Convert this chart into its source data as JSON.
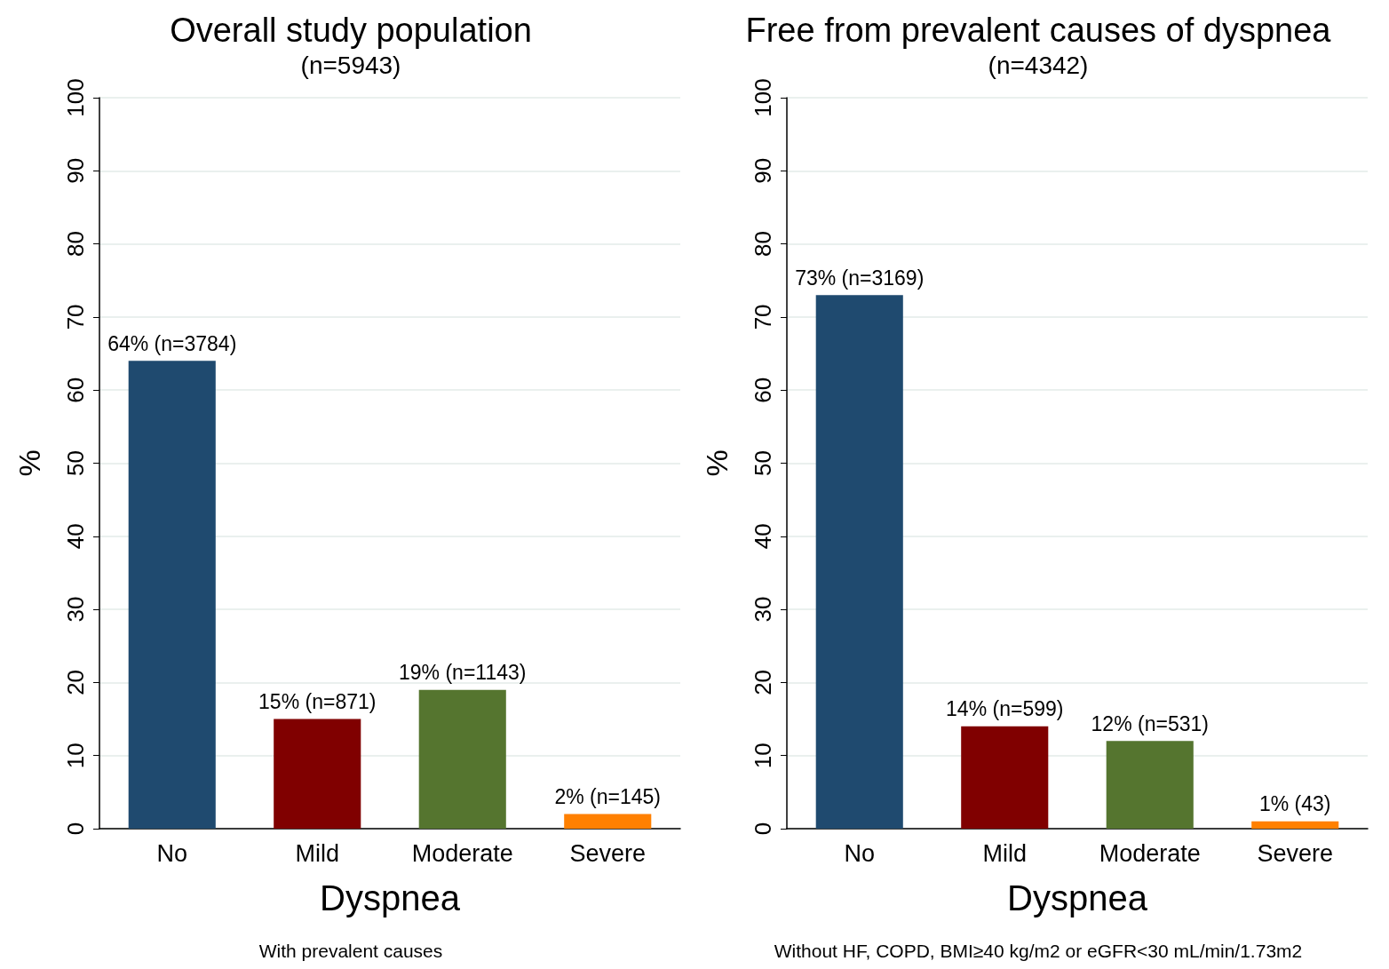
{
  "chart_data": [
    {
      "type": "bar",
      "title": "Overall study population",
      "subtitle": "(n=5943)",
      "xlabel": "Dyspnea",
      "ylabel": "%",
      "annotations": [
        "With prevalent causes"
      ],
      "categories": [
        "No",
        "Mild",
        "Moderate",
        "Severe"
      ],
      "values": [
        64,
        15,
        19,
        2
      ],
      "colors": [
        "#1f4a6f",
        "#800000",
        "#55752f",
        "#ff8000"
      ],
      "value_labels": [
        "64% (n=3784)",
        "15% (n=871)",
        "19% (n=1143)",
        "2% (n=145)"
      ],
      "ylim": [
        0,
        100
      ],
      "yticks": [
        0,
        10,
        20,
        30,
        40,
        50,
        60,
        70,
        80,
        90,
        100
      ],
      "grid": "y"
    },
    {
      "type": "bar",
      "title": "Free from prevalent causes of dyspnea",
      "subtitle": "(n=4342)",
      "xlabel": "Dyspnea",
      "ylabel": "%",
      "annotations": [
        "Without HF, COPD, BMI≥40 kg/m2 or eGFR<30 mL/min/1.73m2"
      ],
      "categories": [
        "No",
        "Mild",
        "Moderate",
        "Severe"
      ],
      "values": [
        73,
        14,
        12,
        1
      ],
      "colors": [
        "#1f4a6f",
        "#800000",
        "#55752f",
        "#ff8000"
      ],
      "value_labels": [
        "73% (n=3169)",
        "14% (n=599)",
        "12% (n=531)",
        "1% (43)"
      ],
      "ylim": [
        0,
        100
      ],
      "yticks": [
        0,
        10,
        20,
        30,
        40,
        50,
        60,
        70,
        80,
        90,
        100
      ],
      "grid": "y"
    }
  ]
}
